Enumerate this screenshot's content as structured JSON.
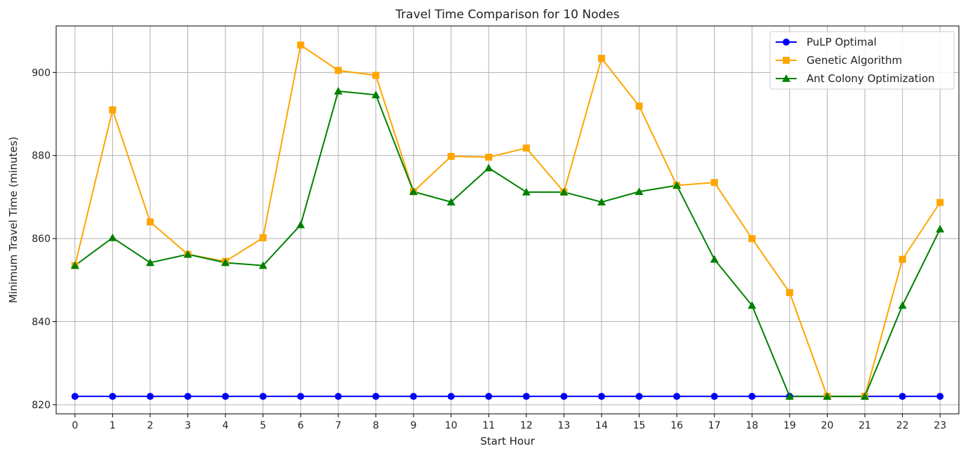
{
  "chart_data": {
    "type": "line",
    "title": "Travel Time Comparison for 10 Nodes",
    "xlabel": "Start Hour",
    "ylabel": "Minimum Travel Time (minutes)",
    "x": [
      0,
      1,
      2,
      3,
      4,
      5,
      6,
      7,
      8,
      9,
      10,
      11,
      12,
      13,
      14,
      15,
      16,
      17,
      18,
      19,
      20,
      21,
      22,
      23
    ],
    "ylim": [
      817.8,
      911.2
    ],
    "yticks": [
      820,
      840,
      860,
      880,
      900
    ],
    "grid": true,
    "legend_position": "top-right",
    "series": [
      {
        "name": "PuLP Optimal",
        "color": "#0000ff",
        "marker": "circle",
        "values": [
          822,
          822,
          822,
          822,
          822,
          822,
          822,
          822,
          822,
          822,
          822,
          822,
          822,
          822,
          822,
          822,
          822,
          822,
          822,
          822,
          822,
          822,
          822,
          822
        ]
      },
      {
        "name": "Genetic Algorithm",
        "color": "#ffa500",
        "marker": "square",
        "values": [
          853.5,
          891,
          864,
          856.2,
          854.5,
          860.2,
          906.6,
          900.5,
          899.3,
          871.3,
          879.8,
          879.6,
          881.8,
          871.2,
          903.4,
          891.9,
          872.8,
          873.5,
          860,
          847,
          822,
          822,
          855,
          868.7
        ]
      },
      {
        "name": "Ant Colony Optimization",
        "color": "#008000",
        "marker": "triangle",
        "values": [
          853.5,
          860.2,
          854.2,
          856.2,
          854.2,
          853.5,
          863.3,
          895.5,
          894.6,
          871.3,
          868.8,
          877.0,
          871.2,
          871.2,
          868.8,
          871.3,
          872.8,
          855.0,
          843.9,
          822,
          822,
          822,
          843.9,
          862.3
        ]
      }
    ]
  }
}
